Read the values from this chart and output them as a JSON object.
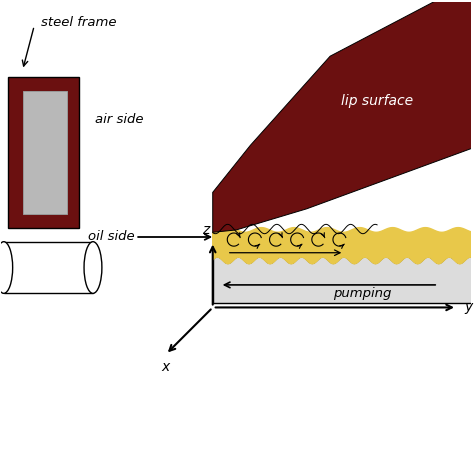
{
  "bg_color": "#ffffff",
  "dark_red": "#6B1010",
  "gold": "#E8C84A",
  "light_gray": "#DCDCDC",
  "shaft_white": "#F0F0F0",
  "seal_inner": "#B8B8B8",
  "text_color": "#000000",
  "lip_surface_label": "lip surface",
  "oil_side_label": "oil side",
  "air_side_label": "air side",
  "steel_frame_label": "steel frame",
  "pumping_label": "pumping",
  "x_label": "x",
  "y_label": "y",
  "z_label": "z",
  "fig_w": 4.74,
  "fig_h": 4.74,
  "dpi": 100
}
